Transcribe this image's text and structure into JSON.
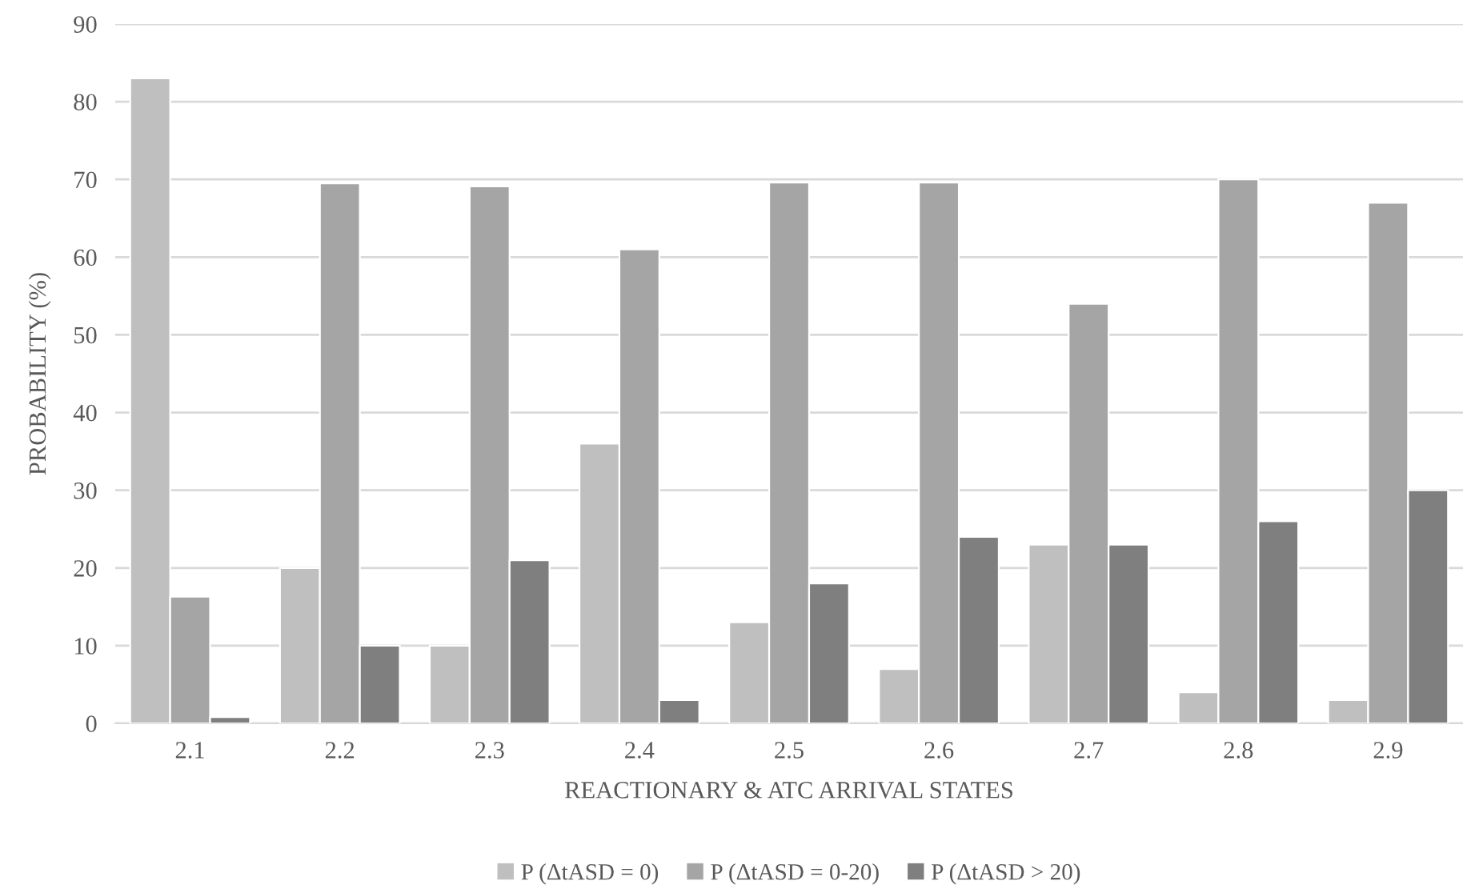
{
  "chart_data": {
    "type": "bar",
    "xlabel": "REACTIONARY & ATC ARRIVAL STATES",
    "ylabel": "PROBABILITY (%)",
    "categories": [
      "2.1",
      "2.2",
      "2.3",
      "2.4",
      "2.5",
      "2.6",
      "2.7",
      "2.8",
      "2.9"
    ],
    "series": [
      {
        "name": "P (ΔtASD = 0)",
        "color": "#bfbfbf",
        "values": [
          83,
          20,
          10,
          36,
          13,
          7,
          23,
          4,
          3
        ]
      },
      {
        "name": "P (ΔtASD = 0-20)",
        "color": "#a5a5a5",
        "values": [
          16.3,
          69.5,
          69.1,
          61,
          69.6,
          69.6,
          54,
          70,
          67
        ]
      },
      {
        "name": "P (ΔtASD > 20)",
        "color": "#7f7f7f",
        "values": [
          0.8,
          10,
          21,
          3,
          18,
          24,
          23,
          26,
          30
        ]
      }
    ],
    "ylim": [
      0,
      90
    ],
    "yticks": [
      0,
      10,
      20,
      30,
      40,
      50,
      60,
      70,
      80,
      90
    ],
    "grid": "y",
    "legend": "bottom"
  }
}
